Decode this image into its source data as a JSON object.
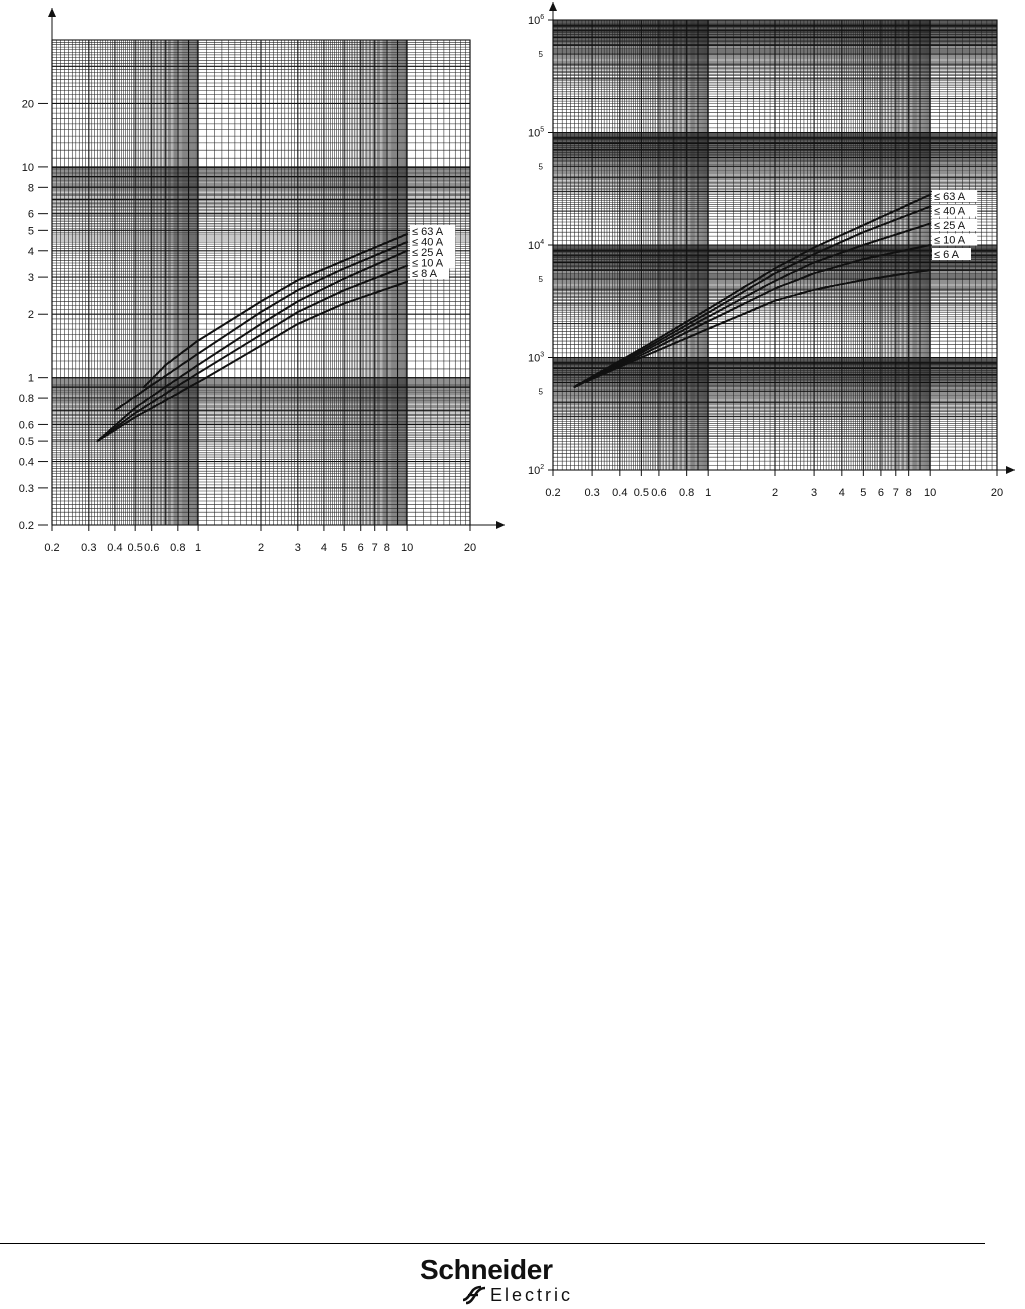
{
  "chart_data": [
    {
      "type": "line",
      "xscale": "log",
      "yscale": "log",
      "xlim": [
        0.2,
        20
      ],
      "ylim": [
        0.2,
        40
      ],
      "xlabel": "",
      "ylabel": "",
      "grid": true,
      "x_ticks": [
        {
          "v": 0.2,
          "label": "0.2"
        },
        {
          "v": 0.3,
          "label": "0.3"
        },
        {
          "v": 0.4,
          "label": "0.4"
        },
        {
          "v": 0.5,
          "label": "0.5"
        },
        {
          "v": 0.6,
          "label": "0.6"
        },
        {
          "v": 0.8,
          "label": "0.8"
        },
        {
          "v": 1,
          "label": "1"
        },
        {
          "v": 2,
          "label": "2"
        },
        {
          "v": 3,
          "label": "3"
        },
        {
          "v": 4,
          "label": "4"
        },
        {
          "v": 5,
          "label": "5"
        },
        {
          "v": 6,
          "label": "6"
        },
        {
          "v": 7,
          "label": "7"
        },
        {
          "v": 8,
          "label": "8"
        },
        {
          "v": 10,
          "label": "10"
        },
        {
          "v": 20,
          "label": "20"
        }
      ],
      "y_ticks": [
        {
          "v": 0.2,
          "label": "0.2"
        },
        {
          "v": 0.3,
          "label": "0.3"
        },
        {
          "v": 0.4,
          "label": "0.4"
        },
        {
          "v": 0.5,
          "label": "0.5"
        },
        {
          "v": 0.6,
          "label": "0.6"
        },
        {
          "v": 0.8,
          "label": "0.8"
        },
        {
          "v": 1,
          "label": "1"
        },
        {
          "v": 2,
          "label": "2"
        },
        {
          "v": 3,
          "label": "3"
        },
        {
          "v": 4,
          "label": "4"
        },
        {
          "v": 5,
          "label": "5"
        },
        {
          "v": 6,
          "label": "6"
        },
        {
          "v": 8,
          "label": "8"
        },
        {
          "v": 10,
          "label": "10"
        },
        {
          "v": 20,
          "label": "20"
        }
      ],
      "series": [
        {
          "name": "≤ 63 A",
          "x": [
            0.55,
            0.7,
            1,
            2,
            3,
            5,
            10
          ],
          "y": [
            0.9,
            1.15,
            1.5,
            2.3,
            2.9,
            3.6,
            4.8
          ]
        },
        {
          "name": "≤ 40 A",
          "x": [
            0.4,
            0.6,
            1,
            2,
            3,
            5,
            10
          ],
          "y": [
            0.7,
            0.92,
            1.3,
            2.05,
            2.6,
            3.3,
            4.4
          ]
        },
        {
          "name": "≤ 25 A",
          "x": [
            0.33,
            0.5,
            1,
            2,
            3,
            5,
            10
          ],
          "y": [
            0.5,
            0.72,
            1.15,
            1.8,
            2.3,
            2.95,
            4.0
          ]
        },
        {
          "name": "≤ 10 A",
          "x": [
            0.33,
            0.5,
            1,
            2,
            3,
            5,
            10
          ],
          "y": [
            0.5,
            0.68,
            1.05,
            1.6,
            2.05,
            2.6,
            3.4
          ]
        },
        {
          "name": "≤ 8 A",
          "x": [
            0.33,
            0.5,
            1,
            2,
            3,
            5,
            10
          ],
          "y": [
            0.5,
            0.65,
            0.95,
            1.42,
            1.8,
            2.25,
            2.85
          ]
        }
      ]
    },
    {
      "type": "line",
      "xscale": "log",
      "yscale": "log",
      "xlim": [
        0.2,
        20
      ],
      "ylim": [
        100,
        1000000
      ],
      "xlabel": "",
      "ylabel": "",
      "grid": true,
      "x_ticks": [
        {
          "v": 0.2,
          "label": "0.2"
        },
        {
          "v": 0.3,
          "label": "0.3"
        },
        {
          "v": 0.4,
          "label": "0.4"
        },
        {
          "v": 0.5,
          "label": "0.5"
        },
        {
          "v": 0.6,
          "label": "0.6"
        },
        {
          "v": 0.8,
          "label": "0.8"
        },
        {
          "v": 1,
          "label": "1"
        },
        {
          "v": 2,
          "label": "2"
        },
        {
          "v": 3,
          "label": "3"
        },
        {
          "v": 4,
          "label": "4"
        },
        {
          "v": 5,
          "label": "5"
        },
        {
          "v": 6,
          "label": "6"
        },
        {
          "v": 7,
          "label": "7"
        },
        {
          "v": 8,
          "label": "8"
        },
        {
          "v": 10,
          "label": "10"
        },
        {
          "v": 20,
          "label": "20"
        }
      ],
      "y_ticks": [
        {
          "v": 100,
          "base": "10",
          "exp": "2"
        },
        {
          "v": 1000,
          "base": "10",
          "exp": "3"
        },
        {
          "v": 10000,
          "base": "10",
          "exp": "4"
        },
        {
          "v": 100000,
          "base": "10",
          "exp": "5"
        },
        {
          "v": 1000000,
          "base": "10",
          "exp": "6"
        }
      ],
      "y_minor_ticks": [
        {
          "v": 500,
          "label": "5"
        },
        {
          "v": 5000,
          "label": "5"
        },
        {
          "v": 50000,
          "label": "5"
        },
        {
          "v": 500000,
          "label": "5"
        }
      ],
      "series": [
        {
          "name": "≤ 63 A",
          "x": [
            0.25,
            0.5,
            1,
            2,
            3,
            5,
            10
          ],
          "y": [
            550,
            1200,
            2700,
            6200,
            9500,
            15000,
            28000
          ]
        },
        {
          "name": "≤ 40 A",
          "x": [
            0.25,
            0.5,
            1,
            2,
            3,
            5,
            10
          ],
          "y": [
            550,
            1150,
            2500,
            5600,
            8300,
            13000,
            22000
          ]
        },
        {
          "name": "≤ 25 A",
          "x": [
            0.25,
            0.5,
            1,
            2,
            3,
            5,
            10
          ],
          "y": [
            550,
            1100,
            2300,
            4800,
            7000,
            10000,
            15500
          ]
        },
        {
          "name": "≤ 10 A",
          "x": [
            0.25,
            0.5,
            1,
            2,
            3,
            5,
            10
          ],
          "y": [
            550,
            1050,
            2100,
            4100,
            5600,
            7500,
            10000
          ]
        },
        {
          "name": "≤ 6 A",
          "x": [
            0.25,
            0.5,
            1,
            2,
            3,
            5,
            10
          ],
          "y": [
            550,
            1000,
            1800,
            3200,
            4000,
            4900,
            6000
          ]
        }
      ]
    }
  ],
  "footer": {
    "brand_main": "Schneider",
    "brand_sub": "Electric"
  }
}
